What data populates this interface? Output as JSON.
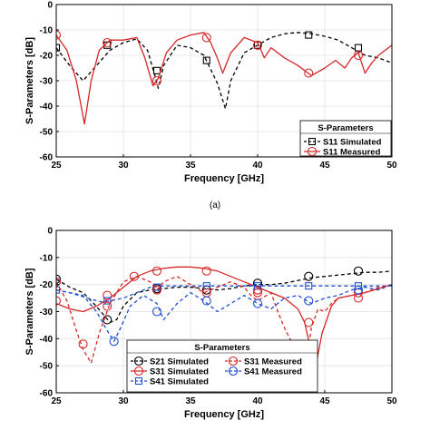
{
  "chart_data": [
    {
      "type": "line",
      "xlabel": "Frequency [GHz]",
      "ylabel": "S-Parameters [dB]",
      "xlim": [
        25,
        50
      ],
      "ylim": [
        -60,
        0
      ],
      "xticks": [
        25,
        30,
        35,
        40,
        45,
        50
      ],
      "yticks": [
        0,
        -10,
        -20,
        -30,
        -40,
        -50,
        -60
      ],
      "grid": true,
      "legend": {
        "title": "S-Parameters",
        "placement": "bottom-right"
      },
      "caption": "(a)",
      "series": [
        {
          "name": "S11 Simulated",
          "color": "#000000",
          "dash": "dashed",
          "marker": "square",
          "x": [
            25,
            26,
            27,
            28,
            29,
            30,
            31,
            31.8,
            32.3,
            32.6,
            33,
            34,
            35,
            36,
            37,
            37.6,
            38,
            39,
            40,
            41,
            42,
            43,
            44,
            45,
            46,
            47,
            48,
            49,
            50
          ],
          "y": [
            -17,
            -24,
            -30,
            -24,
            -18,
            -15,
            -13.5,
            -18,
            -27,
            -33,
            -24,
            -16,
            -17,
            -20,
            -31,
            -41,
            -30,
            -19,
            -16,
            -13,
            -11.5,
            -11,
            -11.5,
            -12.5,
            -14,
            -17,
            -20,
            -21,
            -23
          ],
          "marker_x": [
            25,
            28.8,
            32.5,
            36.2,
            40,
            43.8,
            47.5
          ],
          "marker_y": [
            -17,
            -16,
            -26,
            -22,
            -16,
            -12,
            -17
          ]
        },
        {
          "name": "S11 Measured",
          "color": "#d62728",
          "dash": "solid",
          "marker": "circle",
          "x": [
            25,
            25.8,
            26.5,
            27.1,
            27.6,
            28.2,
            29,
            30,
            31,
            31.6,
            32.2,
            32.6,
            33.2,
            34,
            35,
            36,
            36.5,
            37,
            37.4,
            38,
            39,
            40,
            40.5,
            41,
            42,
            43,
            44,
            45,
            45.8,
            46.5,
            47,
            47.5,
            48,
            48.5,
            49,
            50
          ],
          "y": [
            -12,
            -18,
            -30,
            -47,
            -30,
            -18,
            -14,
            -14,
            -13,
            -21,
            -32,
            -29,
            -19,
            -14,
            -12,
            -11,
            -15,
            -21,
            -27,
            -19,
            -13,
            -15,
            -21,
            -17,
            -21,
            -24,
            -28,
            -25,
            -22,
            -25,
            -21,
            -19,
            -27,
            -23,
            -20,
            -16
          ],
          "marker_x": [
            25,
            28.8,
            32.5,
            36.2,
            40,
            43.8,
            47.5
          ],
          "marker_y": [
            -12,
            -15,
            -30,
            -13,
            -16,
            -27,
            -20
          ]
        }
      ]
    },
    {
      "type": "line",
      "xlabel": "Frequency [GHz]",
      "ylabel": "S-Parameters [dB]",
      "xlim": [
        25,
        50
      ],
      "ylim": [
        -60,
        0
      ],
      "xticks": [
        25,
        30,
        35,
        40,
        45,
        50
      ],
      "yticks": [
        0,
        -10,
        -20,
        -30,
        -40,
        -50,
        -60
      ],
      "grid": true,
      "legend": {
        "title": "S-Parameters",
        "placement": "bottom"
      },
      "caption": "",
      "series": [
        {
          "name": "S21 Simulated",
          "color": "#000000",
          "dash": "dashed",
          "marker": "circle",
          "x": [
            25,
            26,
            27,
            27.8,
            28.5,
            29,
            29.5,
            30,
            31,
            32,
            33,
            34,
            35,
            36,
            37,
            38,
            39,
            40,
            41,
            42,
            43,
            44,
            45,
            46,
            47,
            48,
            49,
            50
          ],
          "y": [
            -18,
            -21,
            -23,
            -27,
            -31,
            -34,
            -33,
            -28,
            -23,
            -22,
            -21.5,
            -21,
            -21,
            -21.5,
            -22,
            -21.5,
            -20.5,
            -20,
            -20,
            -19.5,
            -18.5,
            -17.5,
            -17,
            -16.5,
            -16,
            -15.5,
            -15.5,
            -15
          ],
          "marker_x": [
            25,
            28.8,
            32.5,
            36.2,
            40,
            43.8,
            47.5
          ],
          "marker_y": [
            -18,
            -33,
            -21.5,
            -22,
            -19.5,
            -17,
            -15
          ]
        },
        {
          "name": "S31 Simulated",
          "color": "#d62728",
          "dash": "solid",
          "marker": "circle",
          "x": [
            25,
            26,
            27,
            28,
            29,
            30,
            31,
            32,
            33,
            34,
            35,
            36,
            37,
            38,
            39,
            40,
            41,
            42,
            43,
            43.5,
            44,
            44.3,
            44.8,
            45.5,
            46,
            47,
            48,
            49,
            50
          ],
          "y": [
            -27,
            -29,
            -30,
            -28,
            -25,
            -21,
            -17,
            -15,
            -14,
            -13.5,
            -13.5,
            -14,
            -15,
            -17,
            -19,
            -21,
            -23,
            -25,
            -29,
            -34,
            -45,
            -51,
            -38,
            -28,
            -25,
            -24,
            -23,
            -21.5,
            -20
          ],
          "marker_x": [
            25,
            28.8,
            32.5,
            36.2,
            40,
            43.8,
            47.5
          ],
          "marker_y": [
            -26,
            -24,
            -15,
            -15,
            -22,
            -43,
            -23
          ]
        },
        {
          "name": "S41 Simulated",
          "color": "#1f4fd1",
          "dash": "dashed",
          "marker": "square",
          "x": [
            25,
            26,
            27,
            28,
            28.5,
            29,
            30,
            31,
            32,
            33,
            34,
            35,
            36,
            37,
            38,
            39,
            40,
            41,
            42,
            43,
            44,
            45,
            46,
            47,
            48,
            49,
            50
          ],
          "y": [
            -22,
            -23,
            -24.5,
            -26,
            -26.5,
            -26,
            -25,
            -23,
            -21,
            -20.5,
            -20.5,
            -20.5,
            -20.5,
            -20.5,
            -20.5,
            -20.5,
            -20.5,
            -20.5,
            -20.5,
            -20.5,
            -20.5,
            -20.5,
            -20.5,
            -20.5,
            -20.5,
            -20.5,
            -20.5
          ],
          "marker_x": [
            25,
            28.8,
            32.5,
            36.2,
            40,
            43.8,
            47.5
          ],
          "marker_y": [
            -22,
            -26,
            -21,
            -20.5,
            -20.5,
            -20.5,
            -20.5
          ]
        },
        {
          "name": "S31 Measured",
          "color": "#d62728",
          "dash": "dashed",
          "marker": "circle",
          "x": [
            25,
            25.8,
            26.5,
            27,
            27.6,
            28.2,
            29,
            30,
            31,
            32,
            32.5,
            33,
            34,
            35,
            36,
            37,
            38,
            39,
            39.5,
            40,
            41,
            41.5,
            42,
            42.5,
            43,
            43.3,
            43.6,
            44,
            44.5,
            45,
            45.5,
            46,
            47,
            48,
            49,
            50
          ],
          "y": [
            -19,
            -26,
            -37,
            -44,
            -49,
            -38,
            -27,
            -19,
            -17,
            -19,
            -22,
            -19,
            -17,
            -20,
            -23,
            -21,
            -19,
            -21,
            -24,
            -26,
            -23,
            -30,
            -36,
            -41,
            -51,
            -58,
            -50,
            -36,
            -29,
            -30,
            -27,
            -25,
            -24,
            -23,
            -21,
            -20
          ],
          "marker_x": [
            25,
            27,
            28.8,
            30.8,
            32.5,
            36.2,
            40,
            43.8,
            47.5
          ],
          "marker_y": [
            -19,
            -42,
            -28,
            -17,
            -22,
            -23,
            -23,
            -34,
            -25
          ]
        },
        {
          "name": "S41 Measured",
          "color": "#1f4fd1",
          "dash": "dashed",
          "marker": "circle",
          "x": [
            25,
            26,
            27,
            28,
            28.8,
            29.3,
            29.8,
            30.5,
            31.5,
            32.5,
            33,
            34,
            35,
            36,
            37,
            38,
            39,
            40,
            41,
            42,
            43,
            44,
            45,
            46,
            47,
            48,
            49,
            50
          ],
          "y": [
            -22,
            -23,
            -24,
            -30,
            -37,
            -41,
            -36,
            -28,
            -24,
            -27,
            -33,
            -27,
            -23,
            -26,
            -30,
            -27,
            -24,
            -27,
            -29,
            -25,
            -24,
            -27,
            -25,
            -24,
            -22,
            -21,
            -22,
            -20
          ],
          "marker_x": [
            29.3,
            32.5,
            36.2,
            40,
            43.8,
            47.5
          ],
          "marker_y": [
            -41,
            -30,
            -26,
            -27,
            -26,
            -22
          ]
        }
      ]
    }
  ]
}
